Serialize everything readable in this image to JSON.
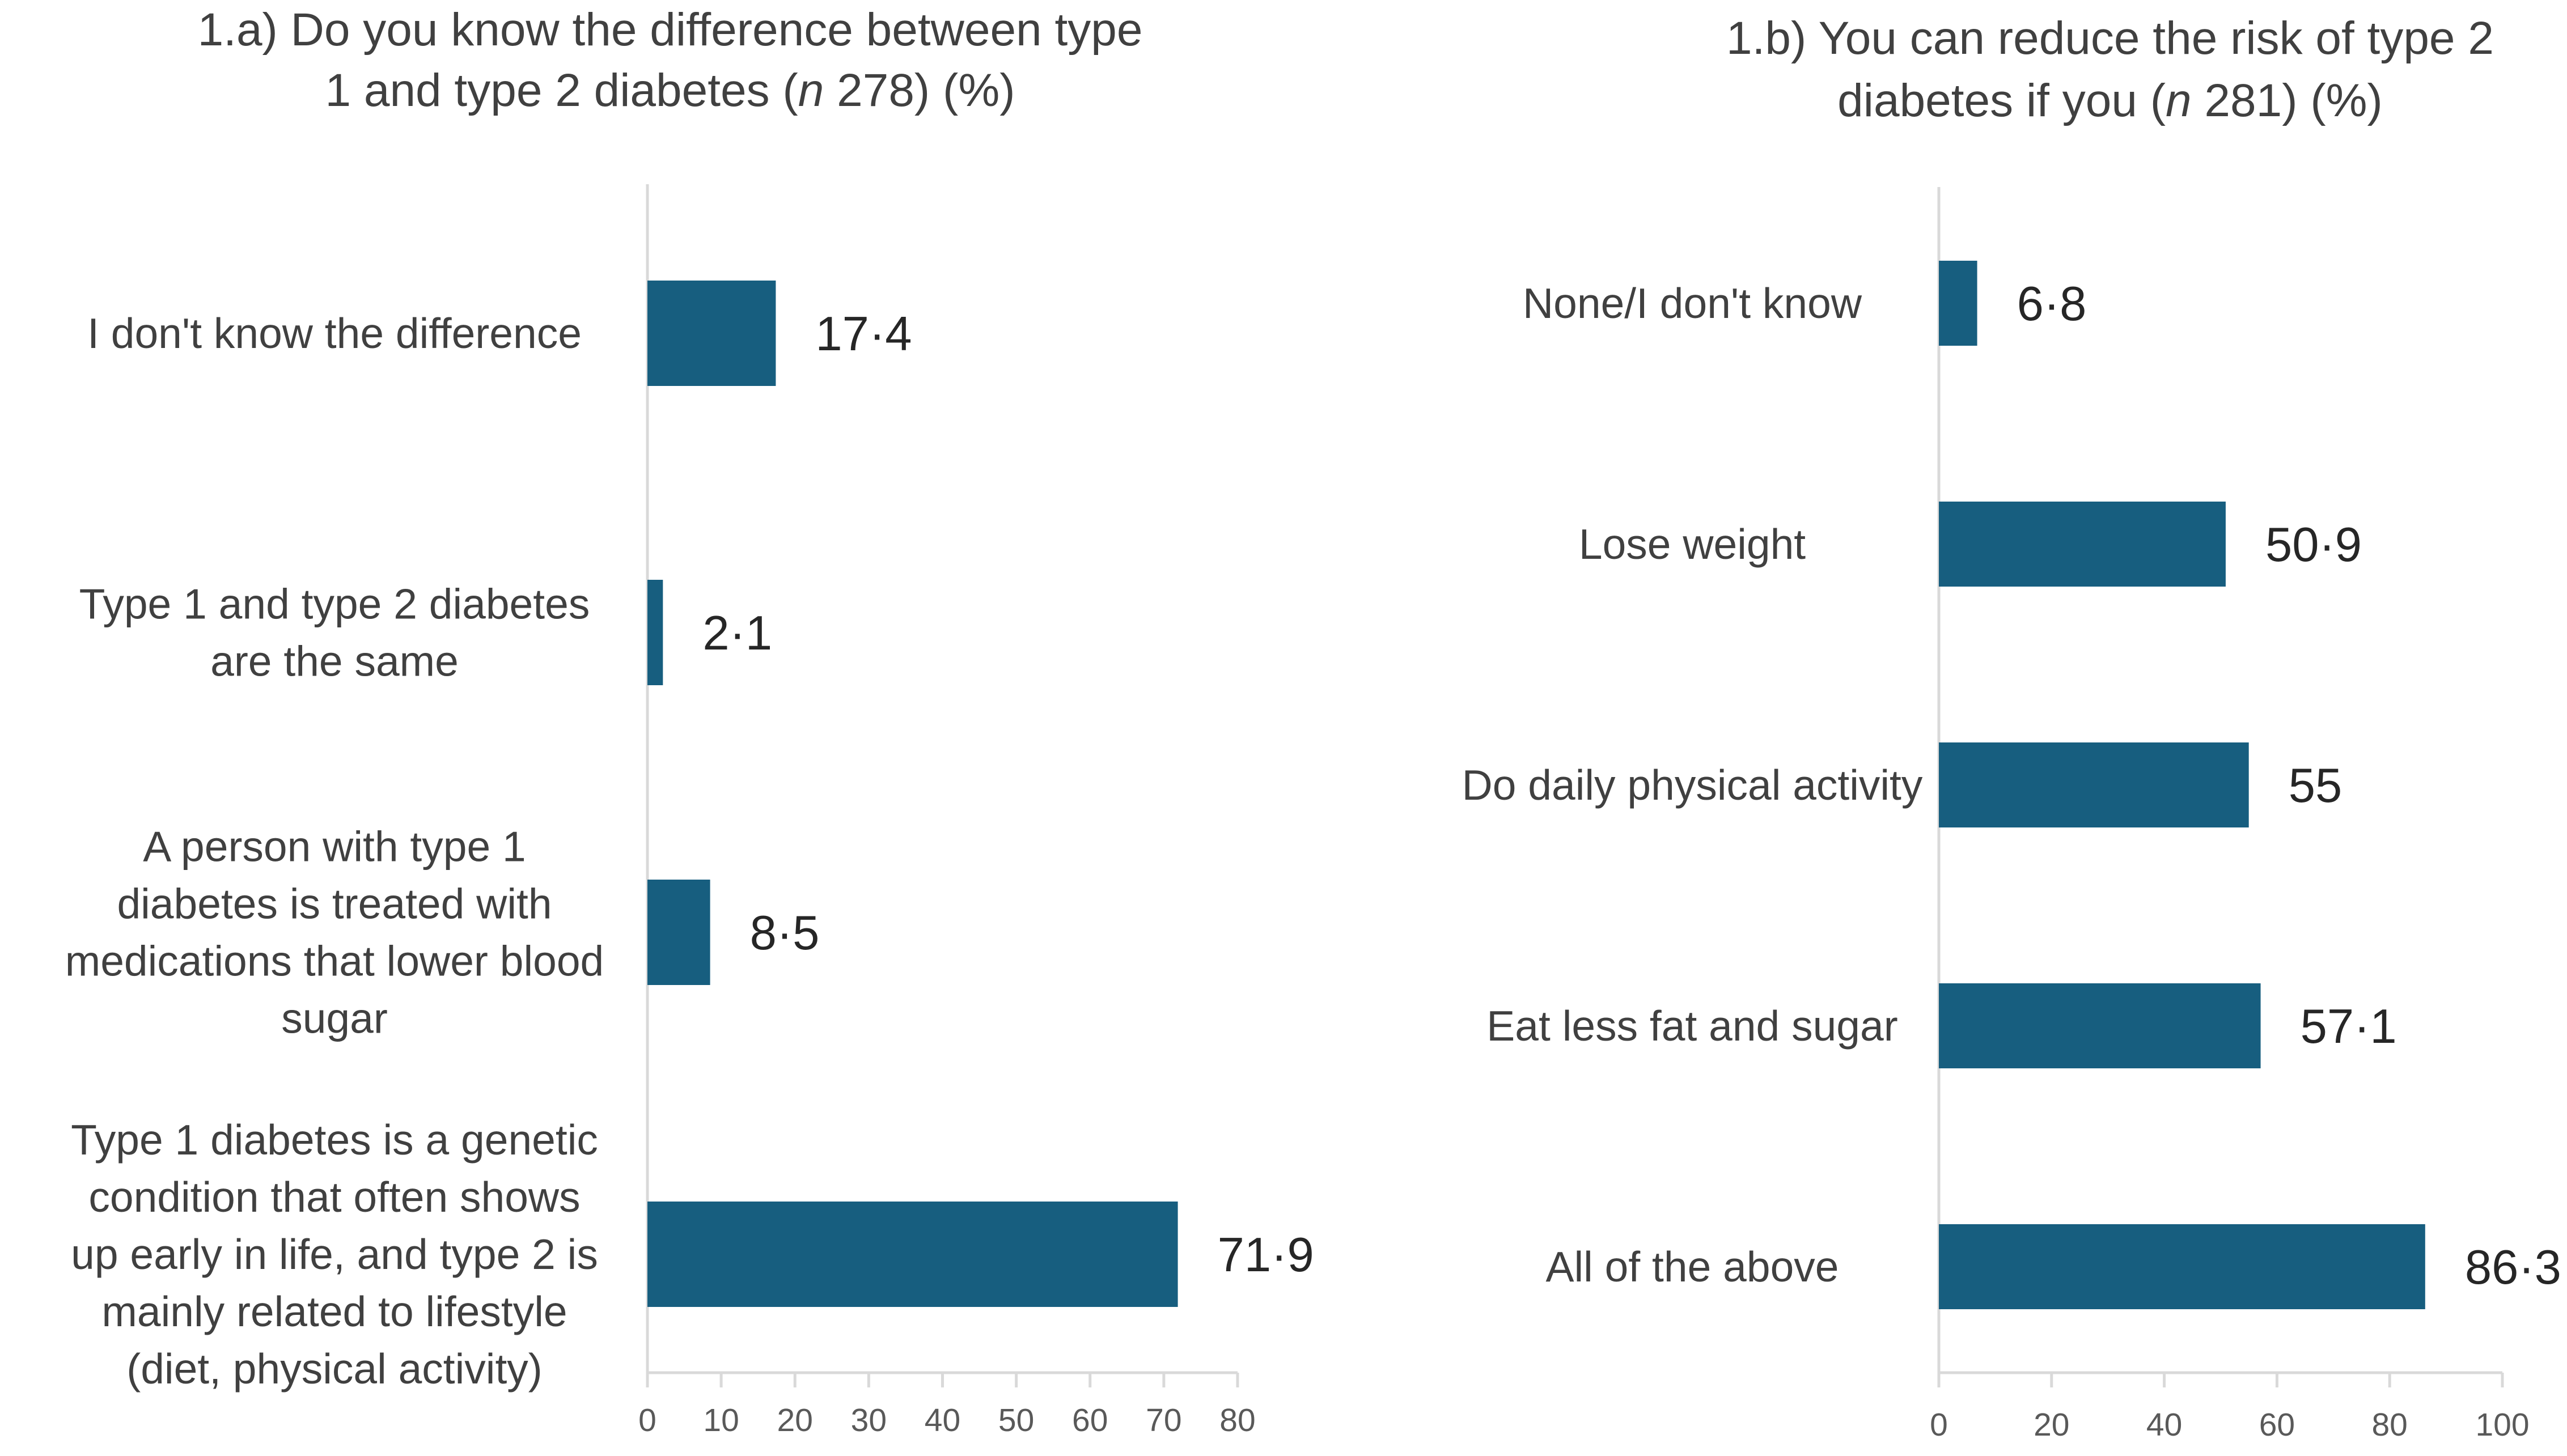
{
  "chart_data": [
    {
      "type": "bar",
      "orientation": "horizontal",
      "title_lines": [
        "1.a) Do you know the difference between type",
        "1 and type 2 diabetes (",
        "n",
        " 278) (%)"
      ],
      "categories": [
        [
          "I don't know the difference"
        ],
        [
          "Type 1 and type 2 diabetes",
          "are the same"
        ],
        [
          "A person with type 1",
          "diabetes is treated with",
          "medications that lower blood",
          "sugar"
        ],
        [
          "Type 1 diabetes is a genetic",
          "condition that often shows",
          "up early in life, and type 2 is",
          "mainly related to lifestyle",
          "(diet, physical activity)"
        ]
      ],
      "values": [
        17.4,
        2.1,
        8.5,
        71.9
      ],
      "value_labels": [
        "17·4",
        "2·1",
        "8·5",
        "71·9"
      ],
      "xlim": [
        0,
        80
      ],
      "xticks": [
        0,
        10,
        20,
        30,
        40,
        50,
        60,
        70,
        80
      ],
      "grid": false,
      "bar_color": "#175E7F"
    },
    {
      "type": "bar",
      "orientation": "horizontal",
      "title_lines": [
        "1.b) You can reduce the risk of type 2",
        "diabetes if you (",
        "n",
        " 281) (%)"
      ],
      "categories": [
        [
          "None/I don't know"
        ],
        [
          "Lose weight"
        ],
        [
          "Do daily physical activity"
        ],
        [
          "Eat less fat and sugar"
        ],
        [
          "All of the above"
        ]
      ],
      "values": [
        6.8,
        50.9,
        55,
        57.1,
        86.3
      ],
      "value_labels": [
        "6·8",
        "50·9",
        "55",
        "57·1",
        "86·3"
      ],
      "xlim": [
        0,
        100
      ],
      "xticks": [
        0,
        20,
        40,
        60,
        80,
        100
      ],
      "grid": false,
      "bar_color": "#175E7F"
    }
  ],
  "colors": {
    "bar": "#175E7F",
    "axis": "#D9D9D9",
    "text": "#404040"
  }
}
